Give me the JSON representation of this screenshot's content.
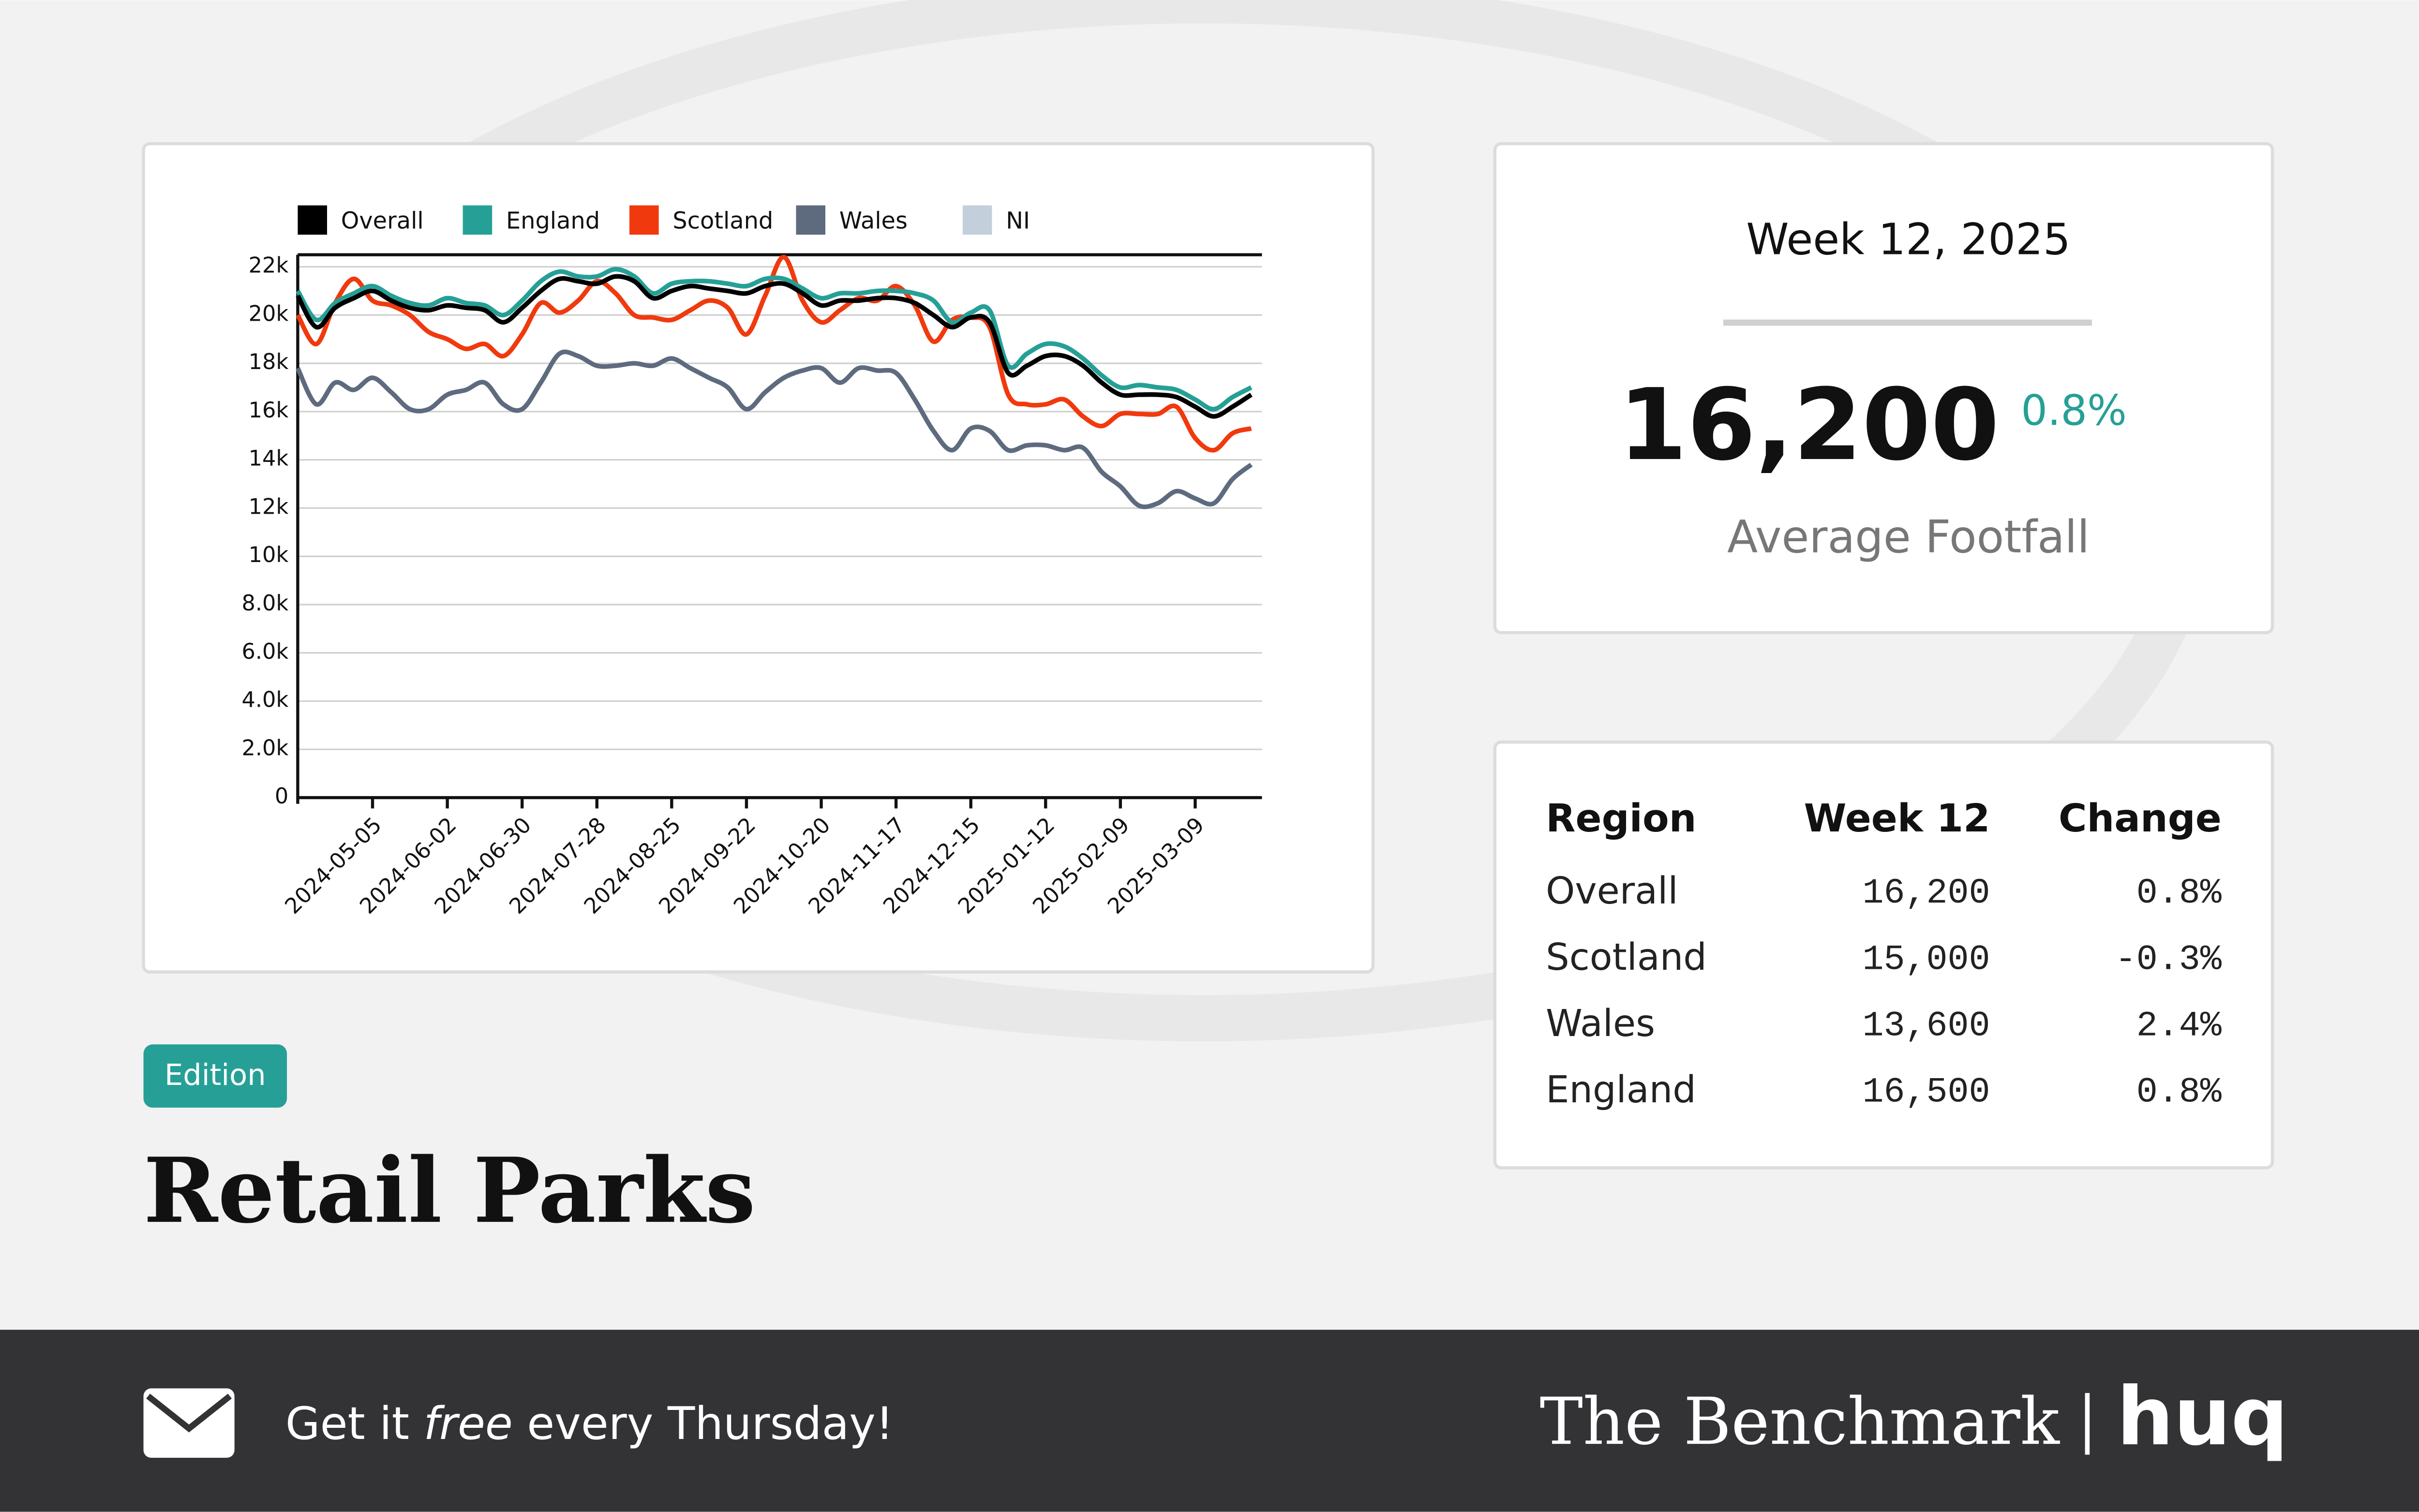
{
  "chart_data": {
    "type": "line",
    "x": [
      "2024-04-07",
      "2024-04-14",
      "2024-04-21",
      "2024-04-28",
      "2024-05-05",
      "2024-05-12",
      "2024-05-19",
      "2024-05-26",
      "2024-06-02",
      "2024-06-09",
      "2024-06-16",
      "2024-06-23",
      "2024-06-30",
      "2024-07-07",
      "2024-07-14",
      "2024-07-21",
      "2024-07-28",
      "2024-08-04",
      "2024-08-11",
      "2024-08-18",
      "2024-08-25",
      "2024-09-01",
      "2024-09-08",
      "2024-09-15",
      "2024-09-22",
      "2024-09-29",
      "2024-10-06",
      "2024-10-13",
      "2024-10-20",
      "2024-10-27",
      "2024-11-03",
      "2024-11-10",
      "2024-11-17",
      "2024-11-24",
      "2024-12-01",
      "2024-12-08",
      "2024-12-15",
      "2024-12-22",
      "2024-12-29",
      "2025-01-05",
      "2025-01-12",
      "2025-01-19",
      "2025-01-26",
      "2025-02-02",
      "2025-02-09",
      "2025-02-16",
      "2025-02-23",
      "2025-03-02",
      "2025-03-09",
      "2025-03-16",
      "2025-03-23",
      "2025-03-30"
    ],
    "xlim": [
      "2024-04-07",
      "2025-04-03"
    ],
    "xticks": [
      "2024-05-05",
      "2024-06-02",
      "2024-06-30",
      "2024-07-28",
      "2024-08-25",
      "2024-09-22",
      "2024-10-20",
      "2024-11-17",
      "2024-12-15",
      "2025-01-12",
      "2025-02-09",
      "2025-03-09"
    ],
    "ylim": [
      0,
      22500
    ],
    "yticks": [
      0,
      {
        "value": 2000,
        "label": "2.0k"
      },
      {
        "value": 4000,
        "label": "4.0k"
      },
      {
        "value": 6000,
        "label": "6.0k"
      },
      {
        "value": 8000,
        "label": "8.0k"
      },
      {
        "value": 10000,
        "label": "10k"
      },
      {
        "value": 12000,
        "label": "12k"
      },
      {
        "value": 14000,
        "label": "14k"
      },
      {
        "value": 16000,
        "label": "16k"
      },
      {
        "value": 18000,
        "label": "18k"
      },
      {
        "value": 20000,
        "label": "20k"
      },
      {
        "value": 22000,
        "label": "22k"
      }
    ],
    "grid": true,
    "series": [
      {
        "name": "Overall",
        "color": "#000000",
        "values": [
          20800,
          19500,
          20300,
          20700,
          21000,
          20600,
          20300,
          20200,
          20400,
          20300,
          20200,
          19700,
          20300,
          21000,
          21500,
          21400,
          21300,
          21600,
          21400,
          20700,
          21000,
          21200,
          21100,
          21000,
          20900,
          21200,
          21300,
          20900,
          20400,
          20600,
          20600,
          20700,
          20700,
          20500,
          20000,
          19500,
          19900,
          19700,
          17600,
          17900,
          18300,
          18300,
          17900,
          17200,
          16700,
          16700,
          16700,
          16600,
          16200,
          15800,
          16200,
          16700
        ]
      },
      {
        "name": "England",
        "color": "#26a096",
        "values": [
          21000,
          19800,
          20500,
          20900,
          21200,
          20800,
          20500,
          20400,
          20700,
          20500,
          20400,
          20000,
          20600,
          21400,
          21800,
          21600,
          21600,
          21900,
          21600,
          20900,
          21300,
          21400,
          21400,
          21300,
          21200,
          21500,
          21500,
          21100,
          20700,
          20900,
          20900,
          21000,
          21000,
          20900,
          20600,
          19700,
          20100,
          20200,
          17900,
          18400,
          18800,
          18700,
          18200,
          17500,
          17000,
          17100,
          17000,
          16900,
          16500,
          16100,
          16600,
          17000
        ]
      },
      {
        "name": "Scotland",
        "color": "#f03a0e",
        "values": [
          20000,
          18800,
          20500,
          21500,
          20600,
          20400,
          20000,
          19300,
          19000,
          18600,
          18800,
          18300,
          19200,
          20500,
          20100,
          20600,
          21400,
          20900,
          20000,
          19900,
          19800,
          20200,
          20600,
          20300,
          19200,
          20800,
          22400,
          20600,
          19700,
          20200,
          20700,
          20600,
          21200,
          20400,
          18900,
          19800,
          19900,
          19500,
          16700,
          16300,
          16300,
          16500,
          15800,
          15400,
          15900,
          15900,
          15900,
          16200,
          14900,
          14400,
          15100,
          15300
        ]
      },
      {
        "name": "Wales",
        "color": "#5e6b7f",
        "values": [
          17800,
          16300,
          17200,
          16900,
          17400,
          16800,
          16100,
          16100,
          16700,
          16900,
          17200,
          16300,
          16100,
          17200,
          18400,
          18300,
          17900,
          17900,
          18000,
          17900,
          18200,
          17800,
          17400,
          17000,
          16100,
          16800,
          17400,
          17700,
          17800,
          17200,
          17800,
          17700,
          17600,
          16500,
          15200,
          14400,
          15300,
          15200,
          14400,
          14600,
          14600,
          14400,
          14500,
          13500,
          12900,
          12100,
          12200,
          12700,
          12400,
          12200,
          13200,
          13800
        ]
      },
      {
        "name": "NI",
        "color": "#c3cfdb",
        "values": [
          null,
          null,
          null,
          null,
          null,
          null,
          null,
          null,
          null,
          null,
          null,
          null,
          null,
          null,
          null,
          null,
          null,
          null,
          null,
          null,
          null,
          null,
          null,
          null,
          null,
          null,
          null,
          null,
          null,
          null,
          null,
          null,
          null,
          null,
          null,
          null,
          null,
          null,
          null,
          null,
          null,
          null,
          null,
          null,
          null,
          null,
          null,
          null,
          null,
          null,
          null,
          null
        ]
      }
    ]
  },
  "card": {
    "title": "Week 12, 2025",
    "value": "16,200",
    "change": "0.8%",
    "label": "Average Footfall"
  },
  "table": {
    "headers": [
      "Region",
      "Week 12",
      "Change"
    ],
    "rows": [
      [
        "Overall",
        "16,200",
        "0.8%"
      ],
      [
        "Scotland",
        "15,000",
        "-0.3%"
      ],
      [
        "Wales",
        "13,600",
        "2.4%"
      ],
      [
        "England",
        "16,500",
        "0.8%"
      ]
    ]
  },
  "badge": "Edition",
  "heading": "Retail Parks",
  "footer": {
    "text_before": "Get it ",
    "text_em": "free",
    "text_after": " every Thursday!",
    "brand": "The Benchmark",
    "logo": "huq"
  }
}
